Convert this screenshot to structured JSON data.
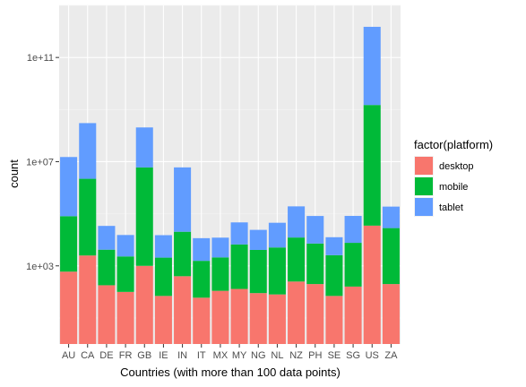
{
  "chart_data": {
    "type": "bar",
    "stacked": true,
    "y_scale": "log10",
    "xlabel": "Countries (with more than 100 data points)",
    "ylabel": "count",
    "categories": [
      "AU",
      "CA",
      "DE",
      "FR",
      "GB",
      "IE",
      "IN",
      "IT",
      "MX",
      "MY",
      "NG",
      "NL",
      "NZ",
      "PH",
      "SE",
      "SG",
      "US",
      "ZA"
    ],
    "series": [
      {
        "name": "desktop",
        "color": "#F8766D",
        "values": [
          600.0,
          2500.0,
          180.0,
          100.0,
          1000.0,
          70.0,
          400.0,
          60.0,
          110.0,
          130.0,
          90.0,
          80.0,
          250.0,
          200.0,
          70.0,
          160.0,
          35000.0,
          200.0
        ]
      },
      {
        "name": "mobile",
        "color": "#00BA38",
        "values": [
          80000.0,
          2200000.0,
          4000.0,
          2200.0,
          6000000.0,
          2000.0,
          20000.0,
          1500.0,
          2000.0,
          6500.0,
          4000.0,
          5000.0,
          12000.0,
          7000.0,
          2500.0,
          7500.0,
          1500000000.0,
          28000.0
        ]
      },
      {
        "name": "tablet",
        "color": "#619CFF",
        "values": [
          15000000.0,
          300000000.0,
          30000.0,
          13000.0,
          200000000.0,
          13000.0,
          6000000.0,
          10000.0,
          10000.0,
          40000.0,
          20000.0,
          40000.0,
          180000.0,
          75000.0,
          10000.0,
          75000.0,
          1500000000000.0,
          160000.0
        ]
      }
    ],
    "y_ticks": [
      {
        "value": 1000.0,
        "label": "1e+03"
      },
      {
        "value": 10000000.0,
        "label": "1e+07"
      },
      {
        "value": 100000000000.0,
        "label": "1e+11"
      }
    ],
    "ylim": [
      1,
      10000000000000.0
    ],
    "grid": true,
    "legend_title": "factor(platform)",
    "legend_position": "right"
  }
}
